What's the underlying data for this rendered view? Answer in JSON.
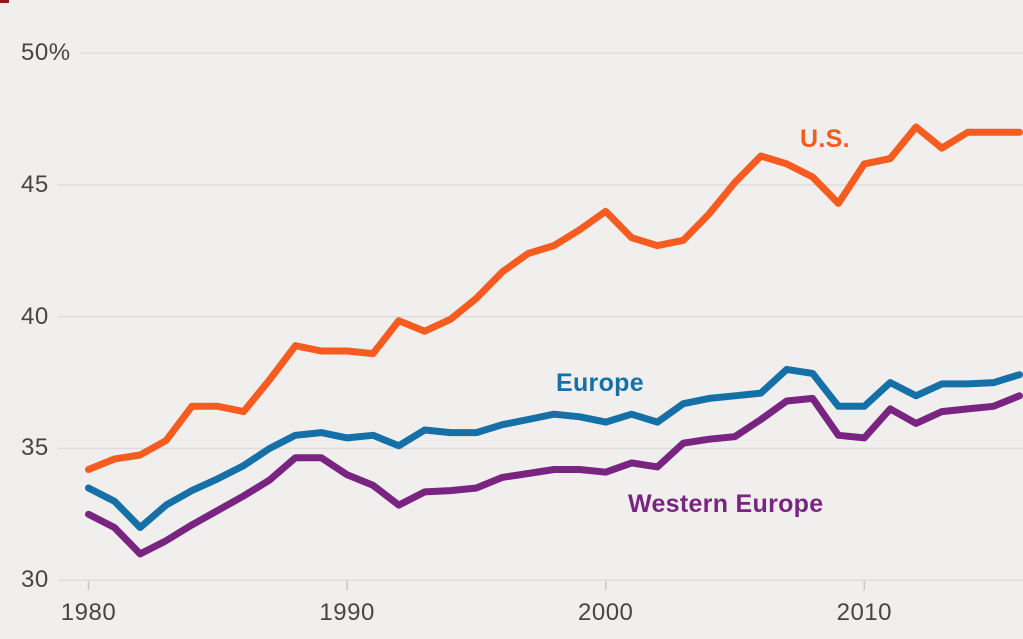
{
  "page": {
    "background_color": "#f0efed",
    "corner_mark_color": "#8b1d18",
    "gridline_color": "#dedcd9",
    "tick_color": "#c9c7c4",
    "axis_text_color": "#474645"
  },
  "chart_data": {
    "type": "line",
    "title": "",
    "xlabel": "",
    "ylabel": "",
    "xlim": [
      1980,
      2016
    ],
    "ylim": [
      30,
      50
    ],
    "grid": "horizontal",
    "legend_position": "inline-labels",
    "x": [
      1980,
      1981,
      1982,
      1983,
      1984,
      1985,
      1986,
      1987,
      1988,
      1989,
      1990,
      1991,
      1992,
      1993,
      1994,
      1995,
      1996,
      1997,
      1998,
      1999,
      2000,
      2001,
      2002,
      2003,
      2004,
      2005,
      2006,
      2007,
      2008,
      2009,
      2010,
      2011,
      2012,
      2013,
      2014,
      2015,
      2016
    ],
    "x_ticks": [
      {
        "value": 1980,
        "label": "1980"
      },
      {
        "value": 1990,
        "label": "1990"
      },
      {
        "value": 2000,
        "label": "2000"
      },
      {
        "value": 2010,
        "label": "2010"
      }
    ],
    "y_ticks": [
      {
        "value": 30,
        "label": "30"
      },
      {
        "value": 35,
        "label": "35"
      },
      {
        "value": 40,
        "label": "40"
      },
      {
        "value": 45,
        "label": "45"
      },
      {
        "value": 50,
        "label": "50%"
      }
    ],
    "series": [
      {
        "name": "U.S.",
        "color": "#f65c1f",
        "values": [
          34.2,
          34.6,
          34.75,
          35.3,
          36.6,
          36.6,
          36.4,
          37.6,
          38.9,
          38.7,
          38.7,
          38.6,
          39.85,
          39.45,
          39.9,
          40.7,
          41.7,
          42.4,
          42.7,
          43.3,
          44.0,
          43.0,
          42.7,
          42.9,
          43.9,
          45.1,
          46.1,
          45.8,
          45.3,
          44.3,
          45.8,
          46.0,
          47.2,
          46.4,
          47.0,
          47.0,
          47.0
        ]
      },
      {
        "name": "Europe",
        "color": "#1670a8",
        "values": [
          33.5,
          33.0,
          32.0,
          32.85,
          33.4,
          33.85,
          34.35,
          35.0,
          35.5,
          35.6,
          35.4,
          35.5,
          35.1,
          35.7,
          35.6,
          35.6,
          35.9,
          36.1,
          36.3,
          36.2,
          36.0,
          36.3,
          36.0,
          36.7,
          36.9,
          37.0,
          37.1,
          38.0,
          37.85,
          36.6,
          36.6,
          37.5,
          37.0,
          37.45,
          37.45,
          37.5,
          37.8
        ]
      },
      {
        "name": "Western Europe",
        "color": "#7a2481",
        "values": [
          32.5,
          32.0,
          31.0,
          31.5,
          32.1,
          32.65,
          33.2,
          33.8,
          34.65,
          34.65,
          34.0,
          33.6,
          32.85,
          33.35,
          33.4,
          33.5,
          33.9,
          34.05,
          34.2,
          34.2,
          34.1,
          34.45,
          34.3,
          35.2,
          35.35,
          35.45,
          36.1,
          36.8,
          36.9,
          35.5,
          35.4,
          36.5,
          35.95,
          36.4,
          36.5,
          36.6,
          37.0
        ]
      }
    ]
  }
}
